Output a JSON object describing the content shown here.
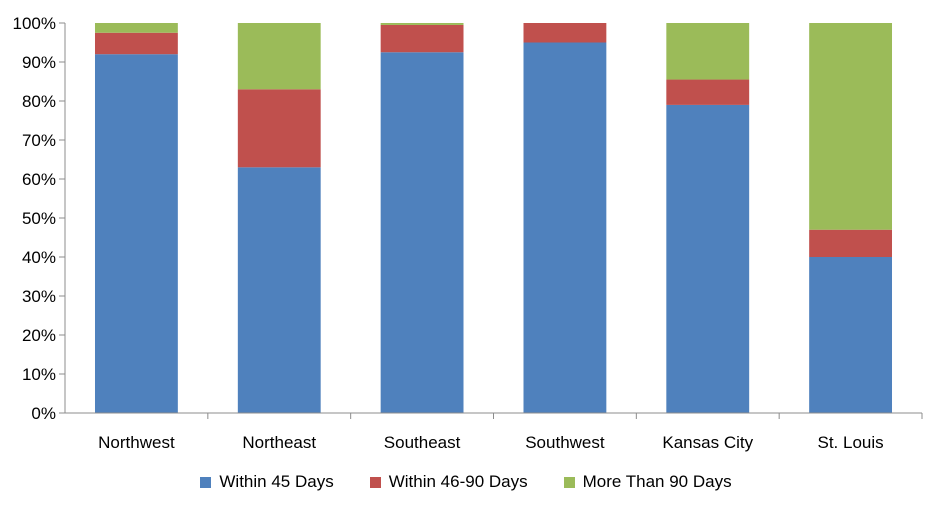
{
  "chart_data": {
    "type": "bar",
    "stacked": true,
    "title": "",
    "xlabel": "",
    "ylabel": "",
    "ylim": [
      0,
      100
    ],
    "y_ticks": [
      "0%",
      "10%",
      "20%",
      "30%",
      "40%",
      "50%",
      "60%",
      "70%",
      "80%",
      "90%",
      "100%"
    ],
    "grid": false,
    "legend_position": "bottom",
    "categories": [
      "Northwest",
      "Northeast",
      "Southeast",
      "Southwest",
      "Kansas City",
      "St. Louis"
    ],
    "series": [
      {
        "name": "Within 45 Days",
        "color": "#4F81BD",
        "values": [
          92,
          63,
          92.5,
          95,
          79,
          40
        ]
      },
      {
        "name": "Within 46-90 Days",
        "color": "#C0504D",
        "values": [
          5.5,
          20,
          7,
          5,
          6.5,
          7
        ]
      },
      {
        "name": "More Than 90 Days",
        "color": "#9BBB59",
        "values": [
          2.5,
          17,
          0.5,
          0,
          14.5,
          53
        ]
      }
    ]
  }
}
